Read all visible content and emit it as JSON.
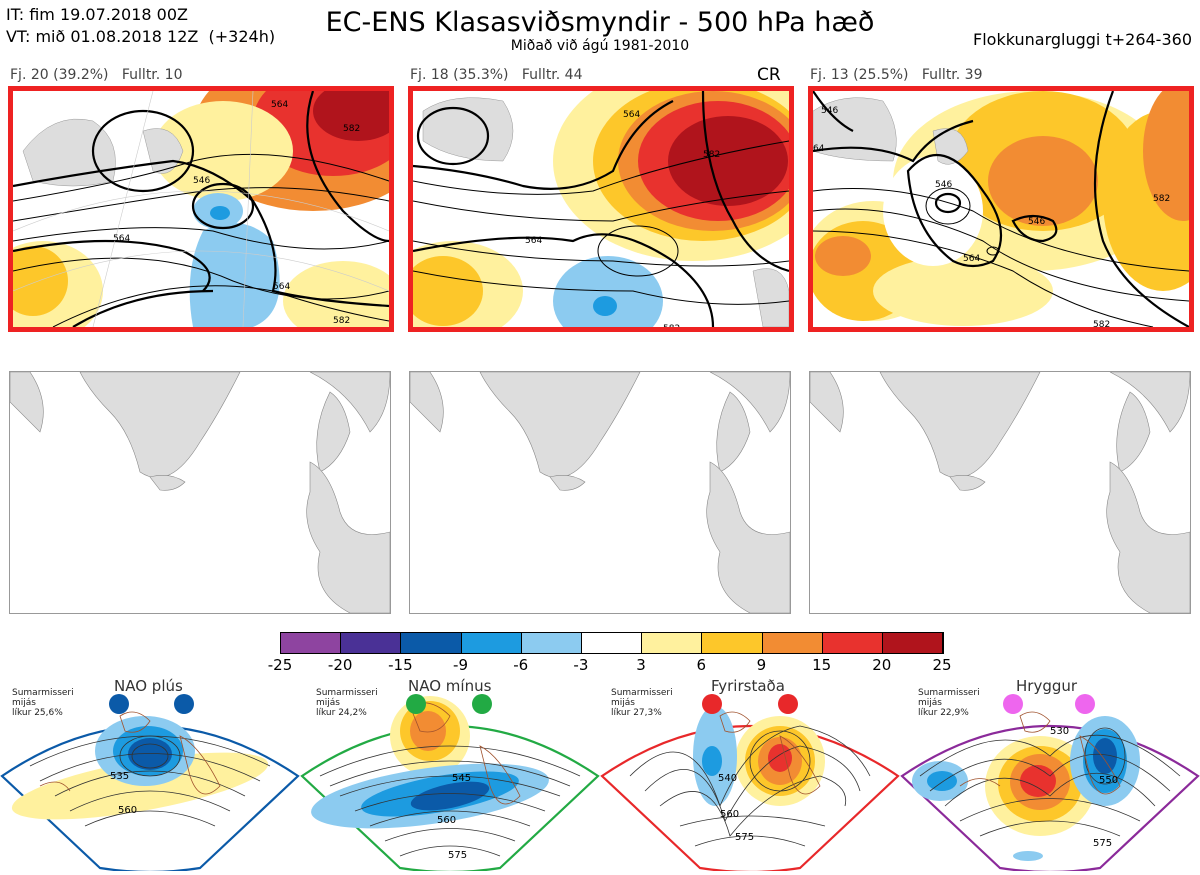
{
  "header": {
    "it_line": "IT: fim 19.07.2018 00Z",
    "vt_line": "VT: mið 01.08.2018 12Z  (+324h)",
    "title": "EC-ENS Klasasviðsmyndir - 500 hPa hæð",
    "subtitle": "Miðað við ágú 1981-2010",
    "window": "Flokkunargluggi t+264-360"
  },
  "clusters": [
    {
      "label": "Fj. 20 (39.2%)",
      "rep": "Fulltr. 10",
      "tag": ""
    },
    {
      "label": "Fj. 18 (35.3%)",
      "rep": "Fulltr. 44",
      "tag": "CR"
    },
    {
      "label": "Fj. 13 (25.5%)",
      "rep": "Fulltr. 39",
      "tag": ""
    }
  ],
  "contour_labels": {
    "c1": [
      "546",
      "564",
      "564",
      "582",
      "582",
      "564"
    ],
    "c2": [
      "564",
      "582",
      "564",
      "582"
    ],
    "c3": [
      "546",
      "546",
      "546",
      "564",
      "582",
      "582",
      "64"
    ]
  },
  "colorbar": {
    "ticks": [
      "-25",
      "-20",
      "-15",
      "-9",
      "-6",
      "-3",
      "3",
      "6",
      "9",
      "15",
      "20",
      "25"
    ],
    "colors": [
      "#8e44a0",
      "#4a3196",
      "#0b5aa8",
      "#1d9be0",
      "#8ccbf0",
      "#ffffff",
      "#fff19e",
      "#fdc72a",
      "#f28c33",
      "#e8322e",
      "#b0141c"
    ]
  },
  "regimes": [
    {
      "name": "NAO plús",
      "season": "Sumarmisseri",
      "period": "mijás",
      "prob": "líkur 25,6%",
      "color": "#0b5aa8",
      "labels": [
        "535",
        "560"
      ]
    },
    {
      "name": "NAO mínus",
      "season": "Sumarmisseri",
      "period": "mijás",
      "prob": "líkur 24,2%",
      "color": "#22aa44",
      "labels": [
        "545",
        "560",
        "575"
      ]
    },
    {
      "name": "Fyrirstaða",
      "season": "Sumarmisseri",
      "period": "mijás",
      "prob": "líkur 27,3%",
      "color": "#e8282a",
      "labels": [
        "540",
        "560",
        "575"
      ]
    },
    {
      "name": "Hryggur",
      "season": "Sumarmisseri",
      "period": "mijás",
      "prob": "líkur 22,9%",
      "color": "#ee66ee",
      "labels": [
        "530",
        "550",
        "575"
      ]
    }
  ]
}
